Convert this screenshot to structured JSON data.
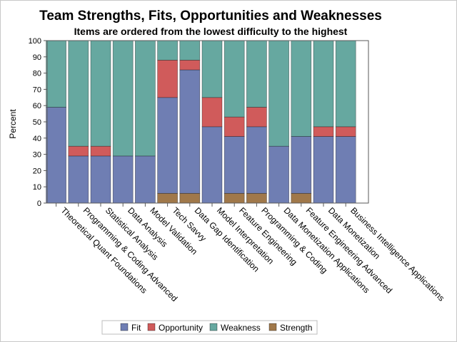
{
  "chart_data": {
    "type": "bar",
    "stacked": true,
    "title": "Team Strengths, Fits, Opportunities and Weaknesses",
    "subtitle": "Items are ordered from the lowest difficulty to the highest",
    "ylabel": "Percent",
    "ylim": [
      0,
      100
    ],
    "yticks": [
      0,
      10,
      20,
      30,
      40,
      50,
      60,
      70,
      80,
      90,
      100
    ],
    "categories": [
      "Theoretical Quant Foundations",
      "Programming & Coding Advanced",
      "Statistical Analysis",
      "Data Analysis",
      "Model Validation",
      "Tech Savvy",
      "Data Gap Identification",
      "Model Interpretation",
      "Feature Engineering",
      "Programming & Coding",
      "Data Monetization Applications",
      "Feature Engineering Advanced",
      "Data Monetization",
      "Business Intelligence Applications"
    ],
    "series": [
      {
        "name": "Strength",
        "color": "#A0784A",
        "values": [
          0,
          0,
          0,
          0,
          0,
          6,
          6,
          0,
          6,
          6,
          0,
          6,
          0,
          0
        ]
      },
      {
        "name": "Fit",
        "color": "#6F7EB3",
        "values": [
          59,
          29,
          29,
          29,
          29,
          59,
          76,
          47,
          35,
          41,
          35,
          35,
          41,
          41
        ]
      },
      {
        "name": "Opportunity",
        "color": "#D05B5B",
        "values": [
          0,
          6,
          6,
          0,
          0,
          23,
          6,
          18,
          12,
          12,
          0,
          0,
          6,
          6
        ]
      },
      {
        "name": "Weakness",
        "color": "#66A8A0",
        "values": [
          41,
          65,
          65,
          71,
          71,
          12,
          12,
          35,
          47,
          41,
          65,
          59,
          53,
          53
        ]
      }
    ],
    "stack_order": [
      "Strength",
      "Fit",
      "Opportunity",
      "Weakness"
    ],
    "legend": {
      "placement": "bottom",
      "entries": [
        "Fit",
        "Opportunity",
        "Weakness",
        "Strength"
      ]
    },
    "grid": false
  }
}
